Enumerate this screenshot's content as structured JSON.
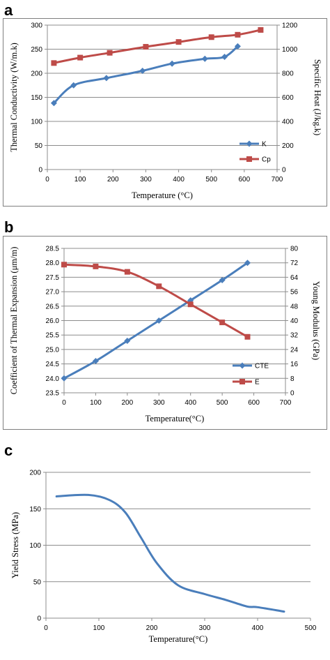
{
  "chart_data": [
    {
      "panel_label": "a",
      "type": "line",
      "xlabel": "Temperature  (°C)",
      "ylabel": "Thermal  Conductivity  (W/m.k)",
      "y2label": "Specific  Heat  (J/kg.k)",
      "xlim": [
        0,
        700
      ],
      "ylim": [
        0,
        300
      ],
      "y2lim": [
        0,
        1200
      ],
      "xticks": [
        "0",
        "100",
        "200",
        "300",
        "400",
        "500",
        "600",
        "700"
      ],
      "yticks": [
        "0",
        "50",
        "100",
        "150",
        "200",
        "250",
        "300"
      ],
      "y2ticks": [
        "0",
        "200",
        "400",
        "600",
        "800",
        "1000",
        "1200"
      ],
      "grid": "horizontal",
      "legend": "bottom-right",
      "series": [
        {
          "name": "K",
          "axis": "left",
          "color": "#4a7ebb",
          "marker": "diamond",
          "x": [
            20,
            80,
            180,
            290,
            380,
            480,
            540,
            580
          ],
          "y": [
            138,
            175,
            190,
            205,
            220,
            230,
            234,
            256
          ]
        },
        {
          "name": "Cp",
          "axis": "right",
          "color": "#be4b48",
          "marker": "square",
          "x": [
            20,
            100,
            190,
            300,
            400,
            500,
            580,
            650
          ],
          "y": [
            885,
            930,
            970,
            1020,
            1060,
            1100,
            1120,
            1160
          ]
        }
      ]
    },
    {
      "panel_label": "b",
      "type": "line",
      "xlabel": "Temperature(°C)",
      "ylabel": "Coefficient  of Thermal  Expansion  (μm/m)",
      "y2label": "Young  Modulus  (GPa)",
      "xlim": [
        0,
        700
      ],
      "ylim": [
        23.5,
        28.5
      ],
      "y2lim": [
        0,
        80
      ],
      "xticks": [
        "0",
        "100",
        "200",
        "300",
        "400",
        "500",
        "600",
        "700"
      ],
      "yticks": [
        "23.5",
        "24.0",
        "24.5",
        "25.0",
        "25.5",
        "26.0",
        "26.5",
        "27.0",
        "27.5",
        "28.0",
        "28.5"
      ],
      "y2ticks": [
        "0",
        "8",
        "16",
        "24",
        "32",
        "40",
        "48",
        "56",
        "64",
        "72",
        "80"
      ],
      "grid": "horizontal",
      "legend": "bottom-right",
      "series": [
        {
          "name": "CTE",
          "axis": "left",
          "color": "#4a7ebb",
          "marker": "diamond",
          "x": [
            0,
            100,
            200,
            300,
            400,
            500,
            580
          ],
          "y": [
            24.0,
            24.6,
            25.3,
            26.0,
            26.7,
            27.4,
            28.0
          ]
        },
        {
          "name": "E",
          "axis": "right",
          "color": "#be4b48",
          "marker": "square",
          "x": [
            0,
            100,
            200,
            300,
            400,
            500,
            580
          ],
          "y": [
            71,
            70,
            67,
            59,
            49,
            39,
            31
          ]
        }
      ]
    },
    {
      "panel_label": "c",
      "type": "line",
      "xlabel": "Temperature(°C)",
      "ylabel": "Yield  Stress  (MPa)",
      "xlim": [
        0,
        500
      ],
      "ylim": [
        0,
        200
      ],
      "xticks": [
        "0",
        "100",
        "200",
        "300",
        "400",
        "500"
      ],
      "yticks": [
        "0",
        "50",
        "100",
        "150",
        "200"
      ],
      "grid": "horizontal",
      "series": [
        {
          "color": "#4a7ebb",
          "x": [
            20,
            80,
            120,
            150,
            180,
            210,
            250,
            300,
            340,
            380,
            400,
            450
          ],
          "y": [
            167,
            169,
            162,
            145,
            110,
            75,
            45,
            33,
            25,
            16,
            15,
            9
          ]
        }
      ]
    }
  ]
}
